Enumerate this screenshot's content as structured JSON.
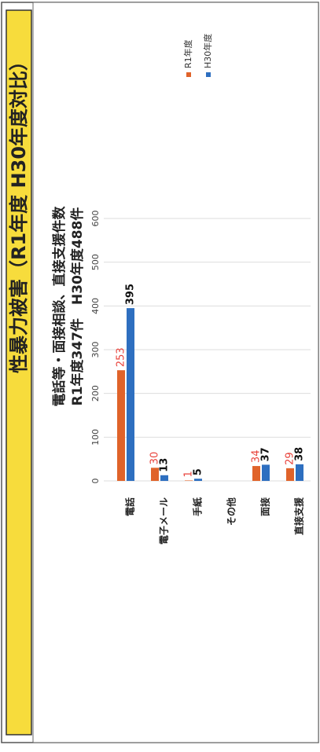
{
  "header": {
    "title": "性暴力被害（R1年度 H30年度対比）"
  },
  "chart_data": {
    "type": "bar",
    "orientation": "horizontal",
    "title": "電話等・面接相談、直接支援件数",
    "subtitle": "R1年度347件　H30年度488件",
    "categories": [
      "電話",
      "電子メール",
      "手紙",
      "その他",
      "面接",
      "直接支援"
    ],
    "series": [
      {
        "name": "R1年度",
        "color": "#e0632a",
        "values": [
          253,
          30,
          1,
          null,
          34,
          29
        ]
      },
      {
        "name": "H30年度",
        "color": "#2e6fc0",
        "values": [
          395,
          13,
          5,
          null,
          37,
          38
        ]
      }
    ],
    "xlim": [
      0,
      600
    ],
    "xticks": [
      0,
      100,
      200,
      300,
      400,
      500,
      600
    ],
    "grid": true,
    "legend": "right"
  }
}
